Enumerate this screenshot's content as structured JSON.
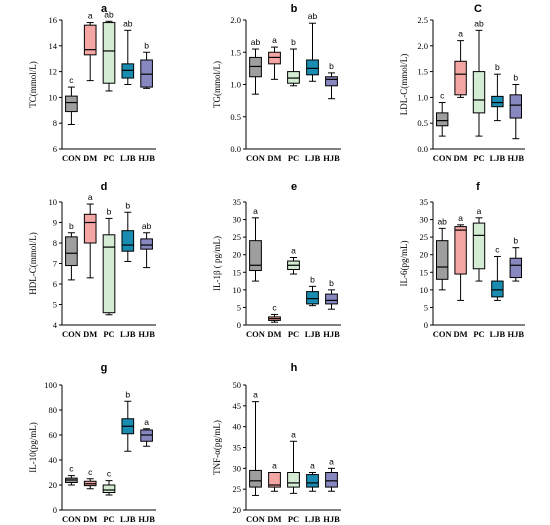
{
  "chart_data": [
    {
      "id": "a",
      "type": "boxplot",
      "title": "a",
      "ylabel": "TC(mmol/L)",
      "categories": [
        "CON",
        "DM",
        "PC",
        "LJB",
        "HJB"
      ],
      "ylim": [
        6,
        16
      ],
      "yticks": [
        6,
        8,
        10,
        12,
        14,
        16
      ],
      "boxes": [
        {
          "min": 7.9,
          "q1": 8.9,
          "median": 9.6,
          "q3": 10.1,
          "max": 10.8,
          "sig": "c"
        },
        {
          "min": 11.3,
          "q1": 13.3,
          "median": 13.7,
          "q3": 15.6,
          "max": 15.8,
          "sig": "a"
        },
        {
          "min": 10.5,
          "q1": 11.1,
          "median": 13.6,
          "q3": 15.8,
          "max": 15.9,
          "sig": "ab"
        },
        {
          "min": 11.0,
          "q1": 11.5,
          "median": 12.1,
          "q3": 12.6,
          "max": 15.2,
          "sig": "ab"
        },
        {
          "min": 10.7,
          "q1": 10.8,
          "median": 11.8,
          "q3": 12.9,
          "max": 13.5,
          "sig": "b"
        }
      ]
    },
    {
      "id": "b",
      "type": "boxplot",
      "title": "b",
      "ylabel": "TG(mmol/L)",
      "categories": [
        "CON",
        "DM",
        "PC",
        "LJB",
        "HJB"
      ],
      "ylim": [
        0,
        2
      ],
      "yticks": [
        0,
        0.5,
        1.0,
        1.5,
        2.0
      ],
      "ytick_labels": [
        "0.0",
        "0.5",
        "1.0",
        "1.5",
        "2.0"
      ],
      "boxes": [
        {
          "min": 0.85,
          "q1": 1.12,
          "median": 1.28,
          "q3": 1.42,
          "max": 1.55,
          "sig": "ab"
        },
        {
          "min": 1.08,
          "q1": 1.32,
          "median": 1.42,
          "q3": 1.5,
          "max": 1.58,
          "sig": "a"
        },
        {
          "min": 0.98,
          "q1": 1.02,
          "median": 1.1,
          "q3": 1.2,
          "max": 1.55,
          "sig": "b"
        },
        {
          "min": 1.05,
          "q1": 1.15,
          "median": 1.25,
          "q3": 1.38,
          "max": 1.95,
          "sig": "ab"
        },
        {
          "min": 0.78,
          "q1": 0.98,
          "median": 1.08,
          "q3": 1.12,
          "max": 1.18,
          "sig": "b"
        }
      ]
    },
    {
      "id": "c",
      "type": "boxplot",
      "title": "C",
      "ylabel": "LDL-C(mmol/L)",
      "categories": [
        "CON",
        "DM",
        "PC",
        "LJB",
        "HJB"
      ],
      "ylim": [
        0,
        2.5
      ],
      "yticks": [
        0,
        0.5,
        1.0,
        1.5,
        2.0,
        2.5
      ],
      "ytick_labels": [
        "0.0",
        "0.5",
        "1.0",
        "1.5",
        "2.0",
        "2.5"
      ],
      "boxes": [
        {
          "min": 0.25,
          "q1": 0.45,
          "median": 0.55,
          "q3": 0.7,
          "max": 0.9,
          "sig": "c"
        },
        {
          "min": 1.0,
          "q1": 1.05,
          "median": 1.45,
          "q3": 1.7,
          "max": 2.1,
          "sig": "a"
        },
        {
          "min": 0.25,
          "q1": 0.7,
          "median": 0.95,
          "q3": 1.5,
          "max": 2.3,
          "sig": "ab"
        },
        {
          "min": 0.55,
          "q1": 0.82,
          "median": 0.9,
          "q3": 1.02,
          "max": 1.45,
          "sig": "b"
        },
        {
          "min": 0.2,
          "q1": 0.6,
          "median": 0.85,
          "q3": 1.05,
          "max": 1.25,
          "sig": "b"
        }
      ]
    },
    {
      "id": "d",
      "type": "boxplot",
      "title": "d",
      "ylabel": "HDL-C(mmol/L)",
      "categories": [
        "CON",
        "DM",
        "PC",
        "LJB",
        "HJB"
      ],
      "ylim": [
        4,
        10
      ],
      "yticks": [
        4,
        5,
        6,
        7,
        8,
        9,
        10
      ],
      "boxes": [
        {
          "min": 6.2,
          "q1": 6.9,
          "median": 7.5,
          "q3": 8.3,
          "max": 8.5,
          "sig": "b"
        },
        {
          "min": 6.3,
          "q1": 8.0,
          "median": 9.0,
          "q3": 9.4,
          "max": 9.9,
          "sig": "a"
        },
        {
          "min": 4.5,
          "q1": 4.6,
          "median": 7.8,
          "q3": 8.4,
          "max": 9.2,
          "sig": "b"
        },
        {
          "min": 7.1,
          "q1": 7.6,
          "median": 7.9,
          "q3": 8.6,
          "max": 9.5,
          "sig": "b"
        },
        {
          "min": 6.8,
          "q1": 7.7,
          "median": 7.9,
          "q3": 8.2,
          "max": 8.5,
          "sig": "ab"
        }
      ]
    },
    {
      "id": "e",
      "type": "boxplot",
      "title": "e",
      "ylabel": "IL-1β ( pg/mL)",
      "categories": [
        "CON",
        "DM",
        "PC",
        "LJB",
        "HJB"
      ],
      "ylim": [
        0,
        35
      ],
      "yticks": [
        0,
        5,
        10,
        15,
        20,
        25,
        30,
        35
      ],
      "boxes": [
        {
          "min": 12.5,
          "q1": 15.5,
          "median": 17.0,
          "q3": 24.0,
          "max": 30.5,
          "sig": "a"
        },
        {
          "min": 0.8,
          "q1": 1.3,
          "median": 1.8,
          "q3": 2.3,
          "max": 3.0,
          "sig": "c"
        },
        {
          "min": 14.5,
          "q1": 15.8,
          "median": 17.0,
          "q3": 18.2,
          "max": 19.2,
          "sig": "a"
        },
        {
          "min": 5.5,
          "q1": 6.0,
          "median": 7.5,
          "q3": 9.5,
          "max": 11.0,
          "sig": "b"
        },
        {
          "min": 4.5,
          "q1": 6.0,
          "median": 7.0,
          "q3": 8.8,
          "max": 10.0,
          "sig": "b"
        }
      ]
    },
    {
      "id": "f",
      "type": "boxplot",
      "title": "f",
      "ylabel": "IL-6(pg/mL)",
      "categories": [
        "CON",
        "DM",
        "PC",
        "LJB",
        "HJB"
      ],
      "ylim": [
        0,
        35
      ],
      "yticks": [
        0,
        5,
        10,
        15,
        20,
        25,
        30,
        35
      ],
      "boxes": [
        {
          "min": 10.0,
          "q1": 13.0,
          "median": 16.5,
          "q3": 24.0,
          "max": 27.5,
          "sig": "ab"
        },
        {
          "min": 7.0,
          "q1": 14.5,
          "median": 27.0,
          "q3": 28.0,
          "max": 28.5,
          "sig": "a"
        },
        {
          "min": 12.5,
          "q1": 16.0,
          "median": 25.5,
          "q3": 29.0,
          "max": 30.5,
          "sig": "a"
        },
        {
          "min": 7.0,
          "q1": 8.0,
          "median": 10.0,
          "q3": 12.5,
          "max": 19.5,
          "sig": "c"
        },
        {
          "min": 12.5,
          "q1": 13.5,
          "median": 17.0,
          "q3": 19.0,
          "max": 22.0,
          "sig": "b"
        }
      ]
    },
    {
      "id": "g",
      "type": "boxplot",
      "title": "g",
      "ylabel": "IL-10(pg/mL)",
      "categories": [
        "CON",
        "DM",
        "PC",
        "LJB",
        "HJB"
      ],
      "ylim": [
        0,
        100
      ],
      "yticks": [
        0,
        20,
        40,
        60,
        80,
        100
      ],
      "boxes": [
        {
          "min": 20.0,
          "q1": 22.0,
          "median": 24.0,
          "q3": 25.5,
          "max": 27.5,
          "sig": "c"
        },
        {
          "min": 17.0,
          "q1": 19.5,
          "median": 21.0,
          "q3": 23.0,
          "max": 25.0,
          "sig": "c"
        },
        {
          "min": 12.0,
          "q1": 14.0,
          "median": 16.0,
          "q3": 20.0,
          "max": 23.5,
          "sig": "c"
        },
        {
          "min": 47.0,
          "q1": 61.0,
          "median": 67.0,
          "q3": 73.0,
          "max": 87.0,
          "sig": "b"
        },
        {
          "min": 51.0,
          "q1": 55.0,
          "median": 60.0,
          "q3": 64.0,
          "max": 65.0,
          "sig": "a"
        }
      ]
    },
    {
      "id": "h",
      "type": "boxplot",
      "title": "h",
      "ylabel": "TNF-α(pg/mL)",
      "categories": [
        "CON",
        "DM",
        "PC",
        "LJB",
        "HJB"
      ],
      "ylim": [
        20,
        50
      ],
      "yticks": [
        20,
        25,
        30,
        35,
        40,
        45,
        50
      ],
      "boxes": [
        {
          "min": 23.5,
          "q1": 25.5,
          "median": 27.0,
          "q3": 29.5,
          "max": 46.0,
          "sig": "a"
        },
        {
          "min": 24.5,
          "q1": 25.5,
          "median": 26.0,
          "q3": 29.0,
          "max": 29.0,
          "sig": "a"
        },
        {
          "min": 24.0,
          "q1": 25.5,
          "median": 26.5,
          "q3": 29.0,
          "max": 36.5,
          "sig": "a"
        },
        {
          "min": 24.5,
          "q1": 25.5,
          "median": 26.5,
          "q3": 28.5,
          "max": 29.0,
          "sig": "a"
        },
        {
          "min": 24.5,
          "q1": 25.5,
          "median": 27.0,
          "q3": 29.0,
          "max": 30.0,
          "sig": "a"
        }
      ]
    }
  ],
  "colors": [
    "#9e9e9e",
    "#f4a6a4",
    "#d4ecd4",
    "#1a8cb2",
    "#8888c0"
  ]
}
